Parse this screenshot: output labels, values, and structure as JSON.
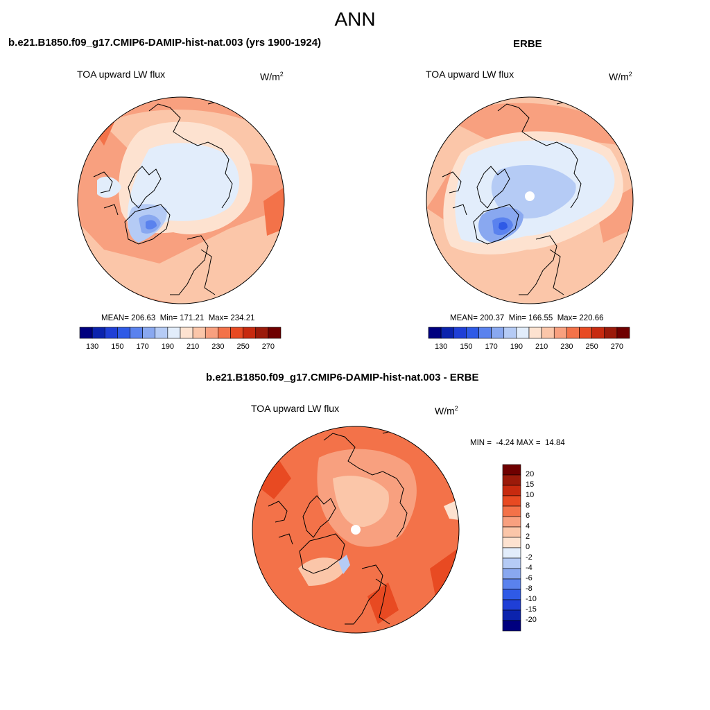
{
  "figure": {
    "title": "ANN",
    "panels": [
      {
        "title": "b.e21.B1850.f09_g17.CMIP6-DAMIP-hist-nat.003 (yrs 1900-1924)",
        "variable": "TOA upward LW flux",
        "units": "W/m",
        "units_exp": "2",
        "stats": "MEAN= 206.63  Min= 171.21  Max= 234.21"
      },
      {
        "title": "ERBE",
        "variable": "TOA upward LW flux",
        "units": "W/m",
        "units_exp": "2",
        "stats": "MEAN= 200.37  Min= 166.55  Max= 220.66"
      },
      {
        "title": "b.e21.B1850.f09_g17.CMIP6-DAMIP-hist-nat.003 - ERBE",
        "variable": "TOA upward LW flux",
        "units": "W/m",
        "units_exp": "2",
        "stats": "MIN =  -4.24 MAX =  14.84"
      }
    ]
  },
  "chart_data": {
    "type": "heatmap",
    "projection": "north polar stereographic",
    "field": "TOA upward LW flux",
    "units": "W/m^2",
    "panels": [
      {
        "name": "model",
        "mean": 206.63,
        "min": 171.21,
        "max": 234.21
      },
      {
        "name": "ERBE",
        "mean": 200.37,
        "min": 166.55,
        "max": 220.66
      },
      {
        "name": "model - ERBE",
        "min": -4.24,
        "max": 14.84
      }
    ],
    "colorbar_abs": {
      "levels": [
        130,
        140,
        150,
        160,
        170,
        180,
        190,
        200,
        210,
        220,
        230,
        240,
        250,
        260,
        270
      ],
      "tick_labels": [
        "130",
        "150",
        "170",
        "190",
        "210",
        "230",
        "250",
        "270"
      ],
      "colors": [
        "#00007f",
        "#0b23ad",
        "#1f3fd6",
        "#2f5ae6",
        "#5a82ee",
        "#89a8f0",
        "#b5cbf5",
        "#e2edfb",
        "#fde2d0",
        "#fbc6a9",
        "#f8a07f",
        "#f37249",
        "#e84a22",
        "#c72a0f",
        "#9b1a0a",
        "#6f0000"
      ]
    },
    "colorbar_diff": {
      "levels": [
        -20,
        -15,
        -10,
        -8,
        -6,
        -4,
        -2,
        0,
        2,
        4,
        6,
        8,
        10,
        15,
        20
      ],
      "tick_labels": [
        "20",
        "15",
        "10",
        "8",
        "6",
        "4",
        "2",
        "0",
        "-2",
        "-4",
        "-6",
        "-8",
        "-10",
        "-15",
        "-20"
      ],
      "colors": [
        "#6f0000",
        "#9b1a0a",
        "#c72a0f",
        "#e84a22",
        "#f37249",
        "#f8a07f",
        "#fbc6a9",
        "#fde2d0",
        "#e2edfb",
        "#b5cbf5",
        "#89a8f0",
        "#5a82ee",
        "#2f5ae6",
        "#1f3fd6",
        "#0b23ad",
        "#00007f"
      ]
    }
  }
}
